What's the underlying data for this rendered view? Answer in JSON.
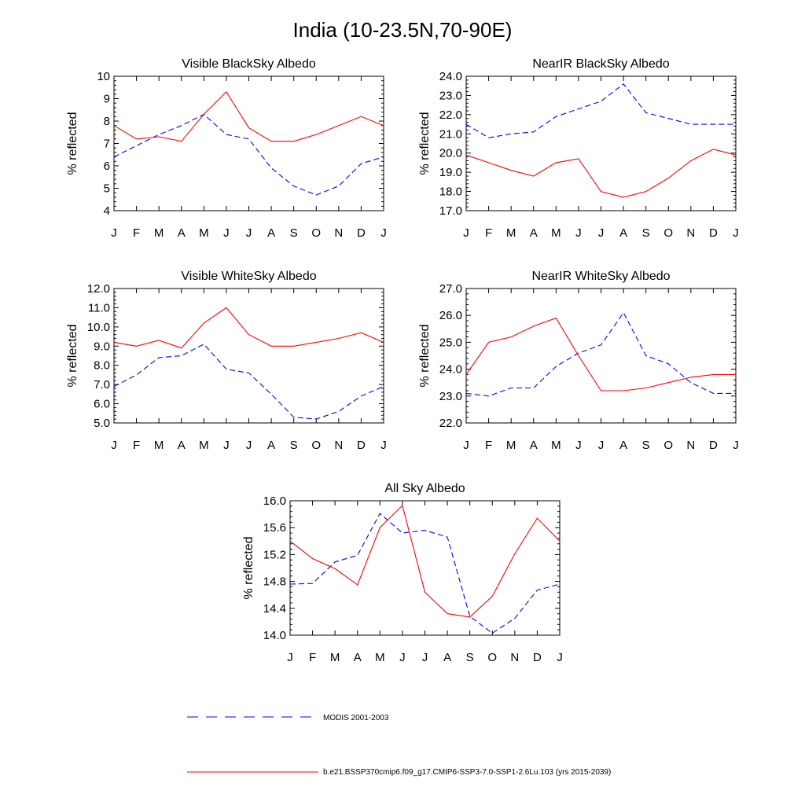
{
  "page_title": "India (10-23.5N,70-90E)",
  "legend": {
    "placement": "bottom",
    "entries": [
      {
        "label": "MODIS 2001-2003",
        "color": "#0000ff",
        "dash": "dashed"
      },
      {
        "label": "b.e21.BSSP370cmip6.f09_g17.CMIP6-SSP3-7.0-SSP1-2.6Lu.103 (yrs 2015-2039)",
        "color": "#ff0000",
        "dash": "solid"
      }
    ]
  },
  "chart_data": [
    {
      "type": "line",
      "title": "Visible BlackSky Albedo",
      "ylabel": "% reflected",
      "xlabel": "",
      "categories": [
        "J",
        "F",
        "M",
        "A",
        "M",
        "J",
        "J",
        "A",
        "S",
        "O",
        "N",
        "D",
        "J"
      ],
      "ylim": [
        4,
        10
      ],
      "yticks": [
        4,
        5,
        6,
        7,
        8,
        9,
        10
      ],
      "ytick_labels": [
        "4",
        "5",
        "6",
        "7",
        "8",
        "9",
        "10"
      ],
      "series": [
        {
          "name": "MODIS 2001-2003",
          "color": "#0000ff",
          "dash": "dashed",
          "values": [
            6.4,
            6.9,
            7.4,
            7.8,
            8.3,
            7.4,
            7.2,
            5.9,
            5.1,
            4.7,
            5.1,
            6.1,
            6.4
          ]
        },
        {
          "name": "b.e21.BSSP370cmip6.f09_g17.CMIP6-SSP3-7.0-SSP1-2.6Lu.103 (yrs 2015-2039)",
          "color": "#ff0000",
          "dash": "solid",
          "values": [
            7.8,
            7.2,
            7.3,
            7.1,
            8.3,
            9.3,
            7.7,
            7.1,
            7.1,
            7.4,
            7.8,
            8.2,
            7.8
          ]
        }
      ]
    },
    {
      "type": "line",
      "title": "NearIR BlackSky Albedo",
      "ylabel": "% reflected",
      "xlabel": "",
      "categories": [
        "J",
        "F",
        "M",
        "A",
        "M",
        "J",
        "J",
        "A",
        "S",
        "O",
        "N",
        "D",
        "J"
      ],
      "ylim": [
        17,
        24
      ],
      "yticks": [
        17,
        18,
        19,
        20,
        21,
        22,
        23,
        24
      ],
      "ytick_labels": [
        "17.0",
        "18.0",
        "19.0",
        "20.0",
        "21.0",
        "22.0",
        "23.0",
        "24.0"
      ],
      "series": [
        {
          "name": "MODIS 2001-2003",
          "color": "#0000ff",
          "dash": "dashed",
          "values": [
            21.5,
            20.8,
            21.0,
            21.1,
            21.9,
            22.3,
            22.7,
            23.6,
            22.1,
            21.8,
            21.5,
            21.5,
            21.5
          ]
        },
        {
          "name": "b.e21.BSSP370cmip6.f09_g17.CMIP6-SSP3-7.0-SSP1-2.6Lu.103 (yrs 2015-2039)",
          "color": "#ff0000",
          "dash": "solid",
          "values": [
            19.9,
            19.5,
            19.1,
            18.8,
            19.5,
            19.7,
            18.0,
            17.7,
            18.0,
            18.7,
            19.6,
            20.2,
            19.9
          ]
        }
      ]
    },
    {
      "type": "line",
      "title": "Visible WhiteSky Albedo",
      "ylabel": "% reflected",
      "xlabel": "",
      "categories": [
        "J",
        "F",
        "M",
        "A",
        "M",
        "J",
        "J",
        "A",
        "S",
        "O",
        "N",
        "D",
        "J"
      ],
      "ylim": [
        5,
        12
      ],
      "yticks": [
        5,
        6,
        7,
        8,
        9,
        10,
        11,
        12
      ],
      "ytick_labels": [
        "5.0",
        "6.0",
        "7.0",
        "8.0",
        "9.0",
        "10.0",
        "11.0",
        "12.0"
      ],
      "series": [
        {
          "name": "MODIS 2001-2003",
          "color": "#0000ff",
          "dash": "dashed",
          "values": [
            6.9,
            7.5,
            8.4,
            8.5,
            9.1,
            7.8,
            7.6,
            6.5,
            5.3,
            5.2,
            5.6,
            6.4,
            6.9
          ]
        },
        {
          "name": "b.e21.BSSP370cmip6.f09_g17.CMIP6-SSP3-7.0-SSP1-2.6Lu.103 (yrs 2015-2039)",
          "color": "#ff0000",
          "dash": "solid",
          "values": [
            9.2,
            9.0,
            9.3,
            8.9,
            10.2,
            11.0,
            9.6,
            9.0,
            9.0,
            9.2,
            9.4,
            9.7,
            9.2
          ]
        }
      ]
    },
    {
      "type": "line",
      "title": "NearIR WhiteSky Albedo",
      "ylabel": "% reflected",
      "xlabel": "",
      "categories": [
        "J",
        "F",
        "M",
        "A",
        "M",
        "J",
        "J",
        "A",
        "S",
        "O",
        "N",
        "D",
        "J"
      ],
      "ylim": [
        22,
        27
      ],
      "yticks": [
        22,
        23,
        24,
        25,
        26,
        27
      ],
      "ytick_labels": [
        "22.0",
        "23.0",
        "24.0",
        "25.0",
        "26.0",
        "27.0"
      ],
      "series": [
        {
          "name": "MODIS 2001-2003",
          "color": "#0000ff",
          "dash": "dashed",
          "values": [
            23.1,
            23.0,
            23.3,
            23.3,
            24.1,
            24.6,
            24.9,
            26.1,
            24.5,
            24.2,
            23.5,
            23.1,
            23.1
          ]
        },
        {
          "name": "b.e21.BSSP370cmip6.f09_g17.CMIP6-SSP3-7.0-SSP1-2.6Lu.103 (yrs 2015-2039)",
          "color": "#ff0000",
          "dash": "solid",
          "values": [
            23.8,
            25.0,
            25.2,
            25.6,
            25.9,
            24.5,
            23.2,
            23.2,
            23.3,
            23.5,
            23.7,
            23.8,
            23.8
          ]
        }
      ]
    },
    {
      "type": "line",
      "title": "All Sky Albedo",
      "ylabel": "% reflected",
      "xlabel": "",
      "categories": [
        "J",
        "F",
        "M",
        "A",
        "M",
        "J",
        "J",
        "A",
        "S",
        "O",
        "N",
        "D",
        "J"
      ],
      "ylim": [
        14,
        16
      ],
      "yticks": [
        14.0,
        14.4,
        14.8,
        15.2,
        15.6,
        16.0
      ],
      "ytick_labels": [
        "14.0",
        "14.4",
        "14.8",
        "15.2",
        "15.6",
        "16.0"
      ],
      "series": [
        {
          "name": "MODIS 2001-2003",
          "color": "#0000ff",
          "dash": "dashed",
          "values": [
            14.76,
            14.77,
            15.09,
            15.19,
            15.81,
            15.52,
            15.56,
            15.46,
            14.28,
            14.03,
            14.25,
            14.67,
            14.76
          ]
        },
        {
          "name": "b.e21.BSSP370cmip6.f09_g17.CMIP6-SSP3-7.0-SSP1-2.6Lu.103 (yrs 2015-2039)",
          "color": "#ff0000",
          "dash": "solid",
          "values": [
            15.4,
            15.14,
            14.99,
            14.75,
            15.6,
            15.93,
            14.64,
            14.32,
            14.27,
            14.58,
            15.21,
            15.74,
            15.4
          ]
        }
      ]
    }
  ]
}
